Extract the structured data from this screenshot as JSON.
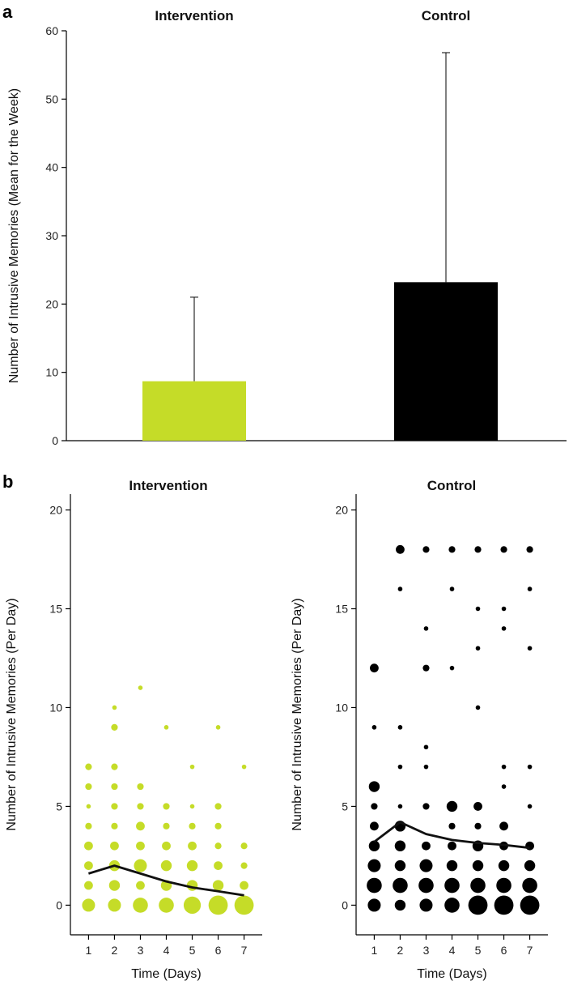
{
  "colors": {
    "intervention": "#c5dc28",
    "control": "#000000",
    "axis": "#000000",
    "trend": "#111111"
  },
  "chart_data": [
    {
      "panel": "a",
      "type": "bar",
      "categories": [
        "Intervention",
        "Control"
      ],
      "values": [
        8.7,
        23.2
      ],
      "error_upper": [
        21.0,
        56.8
      ],
      "ylabel": "Number of Intrusive Memories (Mean for the Week)",
      "yticks": [
        0,
        10,
        20,
        30,
        40,
        50,
        60
      ],
      "ylim": [
        0,
        60
      ]
    },
    {
      "panel": "b",
      "type": "scatter",
      "title": "Intervention",
      "xlabel": "Time (Days)",
      "ylabel": "Number of Intrusive Memories (Per Day)",
      "xticks": [
        1,
        2,
        3,
        4,
        5,
        6,
        7
      ],
      "yticks": [
        0,
        5,
        10,
        15,
        20
      ],
      "xlim": [
        0.3,
        7.7
      ],
      "ylim": [
        -1.5,
        20.8
      ],
      "points": [
        [
          1,
          0,
          5
        ],
        [
          2,
          0,
          5
        ],
        [
          3,
          0,
          6
        ],
        [
          4,
          0,
          6
        ],
        [
          5,
          0,
          7
        ],
        [
          6,
          0,
          8
        ],
        [
          7,
          0,
          8
        ],
        [
          1,
          1,
          3
        ],
        [
          2,
          1,
          4
        ],
        [
          3,
          1,
          3
        ],
        [
          4,
          1,
          4
        ],
        [
          5,
          1,
          4
        ],
        [
          6,
          1,
          4
        ],
        [
          7,
          1,
          3
        ],
        [
          1,
          2,
          3
        ],
        [
          2,
          2,
          4
        ],
        [
          3,
          2,
          5
        ],
        [
          4,
          2,
          4
        ],
        [
          5,
          2,
          4
        ],
        [
          6,
          2,
          3
        ],
        [
          7,
          2,
          2
        ],
        [
          1,
          3,
          3
        ],
        [
          2,
          3,
          3
        ],
        [
          3,
          3,
          3
        ],
        [
          4,
          3,
          3
        ],
        [
          5,
          3,
          3
        ],
        [
          6,
          3,
          2
        ],
        [
          7,
          3,
          2
        ],
        [
          1,
          4,
          2
        ],
        [
          2,
          4,
          2
        ],
        [
          3,
          4,
          3
        ],
        [
          4,
          4,
          2
        ],
        [
          5,
          4,
          2
        ],
        [
          6,
          4,
          2
        ],
        [
          1,
          5,
          1
        ],
        [
          2,
          5,
          2
        ],
        [
          3,
          5,
          2
        ],
        [
          4,
          5,
          2
        ],
        [
          5,
          5,
          1
        ],
        [
          6,
          5,
          2
        ],
        [
          1,
          6,
          2
        ],
        [
          2,
          6,
          2
        ],
        [
          3,
          6,
          2
        ],
        [
          1,
          7,
          2
        ],
        [
          2,
          7,
          2
        ],
        [
          5,
          7,
          1
        ],
        [
          7,
          7,
          1
        ],
        [
          2,
          9,
          2
        ],
        [
          4,
          9,
          1
        ],
        [
          6,
          9,
          1
        ],
        [
          2,
          10,
          1
        ],
        [
          3,
          11,
          1
        ]
      ],
      "trend": [
        [
          1,
          1.6
        ],
        [
          2,
          2.0
        ],
        [
          3,
          1.6
        ],
        [
          4,
          1.2
        ],
        [
          5,
          0.9
        ],
        [
          6,
          0.7
        ],
        [
          7,
          0.5
        ]
      ]
    },
    {
      "panel": "b",
      "type": "scatter",
      "title": "Control",
      "xlabel": "Time (Days)",
      "ylabel": "Number of Intrusive Memories (Per Day)",
      "xticks": [
        1,
        2,
        3,
        4,
        5,
        6,
        7
      ],
      "yticks": [
        0,
        5,
        10,
        15,
        20
      ],
      "xlim": [
        0.3,
        7.7
      ],
      "ylim": [
        -1.5,
        20.8
      ],
      "points": [
        [
          1,
          0,
          5
        ],
        [
          2,
          0,
          4
        ],
        [
          3,
          0,
          5
        ],
        [
          4,
          0,
          6
        ],
        [
          5,
          0,
          8
        ],
        [
          6,
          0,
          8
        ],
        [
          7,
          0,
          8
        ],
        [
          1,
          1,
          6
        ],
        [
          2,
          1,
          6
        ],
        [
          3,
          1,
          6
        ],
        [
          4,
          1,
          6
        ],
        [
          5,
          1,
          6
        ],
        [
          6,
          1,
          6
        ],
        [
          7,
          1,
          6
        ],
        [
          1,
          2,
          5
        ],
        [
          2,
          2,
          4
        ],
        [
          3,
          2,
          5
        ],
        [
          4,
          2,
          4
        ],
        [
          5,
          2,
          4
        ],
        [
          6,
          2,
          4
        ],
        [
          7,
          2,
          4
        ],
        [
          1,
          3,
          4
        ],
        [
          2,
          3,
          4
        ],
        [
          3,
          3,
          3
        ],
        [
          4,
          3,
          3
        ],
        [
          5,
          3,
          4
        ],
        [
          6,
          3,
          3
        ],
        [
          7,
          3,
          3
        ],
        [
          1,
          4,
          3
        ],
        [
          2,
          4,
          4
        ],
        [
          4,
          4,
          2
        ],
        [
          5,
          4,
          2
        ],
        [
          6,
          4,
          3
        ],
        [
          1,
          5,
          2
        ],
        [
          2,
          5,
          1
        ],
        [
          3,
          5,
          2
        ],
        [
          4,
          5,
          4
        ],
        [
          5,
          5,
          3
        ],
        [
          7,
          5,
          1
        ],
        [
          1,
          6,
          4
        ],
        [
          6,
          6,
          1
        ],
        [
          2,
          7,
          1
        ],
        [
          3,
          7,
          1
        ],
        [
          6,
          7,
          1
        ],
        [
          7,
          7,
          1
        ],
        [
          3,
          8,
          1
        ],
        [
          1,
          9,
          1
        ],
        [
          2,
          9,
          1
        ],
        [
          5,
          10,
          1
        ],
        [
          1,
          12,
          3
        ],
        [
          3,
          12,
          2
        ],
        [
          4,
          12,
          1
        ],
        [
          5,
          13,
          1
        ],
        [
          7,
          13,
          1
        ],
        [
          3,
          14,
          1
        ],
        [
          6,
          14,
          1
        ],
        [
          5,
          15,
          1
        ],
        [
          6,
          15,
          1
        ],
        [
          2,
          16,
          1
        ],
        [
          4,
          16,
          1
        ],
        [
          7,
          16,
          1
        ],
        [
          2,
          18,
          3
        ],
        [
          3,
          18,
          2
        ],
        [
          4,
          18,
          2
        ],
        [
          5,
          18,
          2
        ],
        [
          6,
          18,
          2
        ],
        [
          7,
          18,
          2
        ]
      ],
      "trend": [
        [
          1,
          3.2
        ],
        [
          2,
          4.2
        ],
        [
          3,
          3.6
        ],
        [
          4,
          3.3
        ],
        [
          5,
          3.15
        ],
        [
          6,
          3.05
        ],
        [
          7,
          2.9
        ]
      ]
    }
  ],
  "labels": {
    "panel_a": "a",
    "panel_b": "b"
  }
}
